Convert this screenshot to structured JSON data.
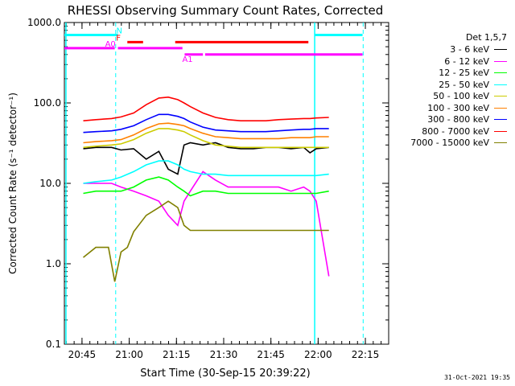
{
  "footer_date": "31-Oct-2021 19:35",
  "chart_data": {
    "type": "line",
    "title": "RHESSI Observing Summary Count Rates, Corrected",
    "xlabel": "Start Time (30-Sep-15 20:39:22)",
    "ylabel": "Corrected Count Rate (s⁻¹ detector⁻¹)",
    "yscale": "log",
    "ylim": [
      0.1,
      1000
    ],
    "yticks": [
      "0.1",
      "1.0",
      "10.0",
      "100.0",
      "1000.0"
    ],
    "xlim_minutes": [
      0,
      103
    ],
    "xticks": [
      {
        "label": "20:45",
        "min": 5.6
      },
      {
        "label": "21:00",
        "min": 20.6
      },
      {
        "label": "21:15",
        "min": 35.6
      },
      {
        "label": "21:30",
        "min": 50.6
      },
      {
        "label": "21:45",
        "min": 65.6
      },
      {
        "label": "22:00",
        "min": 80.6
      },
      {
        "label": "22:15",
        "min": 95.6
      }
    ],
    "legend_header": "Det 1,5,7",
    "legend_placement": "right",
    "vlines_solid_min": [
      0.5,
      79.5
    ],
    "vlines_dashed_min": [
      16.3,
      94.9
    ],
    "flag_bars": [
      {
        "label": "N",
        "color": "#00ffff",
        "segments": [
          [
            0,
            17
          ],
          [
            79.5,
            94.7
          ]
        ],
        "level": 700
      },
      {
        "label": "F",
        "color": "#ff0000",
        "segments": [
          [
            20,
            25
          ],
          [
            35.2,
            77.5
          ]
        ],
        "level": 570
      },
      {
        "label": "A0",
        "color": "#ff00ff",
        "segments": [
          [
            0,
            16
          ],
          [
            17,
            37.5
          ]
        ],
        "level": 480
      },
      {
        "label": "A1",
        "color": "#ff00ff",
        "segments": [
          [
            38.2,
            44
          ],
          [
            44.7,
            94.7
          ]
        ],
        "level": 400
      }
    ],
    "series": [
      {
        "name": "3 - 6 keV",
        "color": "#000000",
        "x": [
          6,
          10,
          15,
          18,
          22,
          26,
          30,
          33,
          36,
          38,
          40,
          44,
          48,
          52,
          56,
          60,
          64,
          68,
          72,
          76,
          78,
          80,
          84
        ],
        "values": [
          27,
          28,
          28,
          26,
          27,
          20,
          25,
          15,
          13,
          30,
          32,
          30,
          32,
          28,
          27,
          27,
          28,
          28,
          27,
          28,
          24,
          27,
          28
        ]
      },
      {
        "name": "6 - 12 keV",
        "color": "#ff00ff",
        "x": [
          6,
          10,
          15,
          18,
          22,
          26,
          30,
          33,
          36,
          38,
          40,
          44,
          48,
          52,
          56,
          60,
          64,
          68,
          72,
          76,
          78,
          80,
          84
        ],
        "values": [
          10,
          10,
          10,
          9,
          8,
          7,
          6,
          4,
          3,
          6,
          8,
          14,
          11,
          9,
          9,
          9,
          9,
          9,
          8,
          9,
          8,
          6,
          0.7
        ]
      },
      {
        "name": "12 - 25 keV",
        "color": "#00ff00",
        "x": [
          6,
          10,
          15,
          18,
          22,
          26,
          30,
          33,
          36,
          38,
          40,
          44,
          48,
          52,
          56,
          60,
          64,
          68,
          72,
          76,
          78,
          80,
          84
        ],
        "values": [
          7.5,
          8,
          8,
          8,
          9,
          11,
          12,
          11,
          9,
          8,
          7,
          8,
          8,
          7.5,
          7.5,
          7.5,
          7.5,
          7.5,
          7.5,
          7.5,
          7.5,
          7.5,
          8
        ]
      },
      {
        "name": "25 - 50 keV",
        "color": "#00ffff",
        "x": [
          6,
          10,
          15,
          18,
          22,
          26,
          30,
          33,
          36,
          38,
          40,
          44,
          48,
          52,
          56,
          60,
          64,
          68,
          72,
          76,
          78,
          80,
          84
        ],
        "values": [
          10,
          10.5,
          11,
          12,
          14,
          17,
          19,
          19,
          17,
          15,
          14,
          13,
          13,
          12.5,
          12.5,
          12.5,
          12.5,
          12.5,
          12.5,
          12.5,
          12.5,
          12.5,
          13
        ]
      },
      {
        "name": "50 - 100 keV",
        "color": "#cccc00",
        "x": [
          6,
          10,
          15,
          18,
          22,
          26,
          30,
          33,
          36,
          38,
          40,
          44,
          48,
          52,
          56,
          60,
          64,
          68,
          72,
          76,
          78,
          80,
          84
        ],
        "values": [
          28,
          29,
          30,
          31,
          35,
          42,
          48,
          48,
          46,
          44,
          40,
          34,
          30,
          29,
          28,
          28,
          28,
          28,
          28,
          28,
          28,
          28,
          28
        ]
      },
      {
        "name": "100 - 300 keV",
        "color": "#ff8000",
        "x": [
          6,
          10,
          15,
          18,
          22,
          26,
          30,
          33,
          36,
          38,
          40,
          44,
          48,
          52,
          56,
          60,
          64,
          68,
          72,
          76,
          78,
          80,
          84
        ],
        "values": [
          32,
          33,
          34,
          35,
          40,
          48,
          55,
          56,
          54,
          52,
          48,
          42,
          38,
          37,
          36,
          36,
          36,
          36,
          37,
          37,
          37,
          38,
          38
        ]
      },
      {
        "name": "300 - 800 keV",
        "color": "#0000ff",
        "x": [
          6,
          10,
          15,
          18,
          22,
          26,
          30,
          33,
          36,
          38,
          40,
          44,
          48,
          52,
          56,
          60,
          64,
          68,
          72,
          76,
          78,
          80,
          84
        ],
        "values": [
          43,
          44,
          45,
          47,
          52,
          62,
          72,
          72,
          68,
          64,
          58,
          50,
          46,
          45,
          44,
          44,
          44,
          45,
          46,
          47,
          47,
          48,
          48
        ]
      },
      {
        "name": "800 - 7000 keV",
        "color": "#ff0000",
        "x": [
          6,
          10,
          15,
          18,
          22,
          26,
          30,
          33,
          36,
          38,
          40,
          44,
          48,
          52,
          56,
          60,
          64,
          68,
          72,
          76,
          78,
          80,
          84
        ],
        "values": [
          60,
          62,
          64,
          67,
          75,
          95,
          115,
          118,
          110,
          100,
          90,
          75,
          66,
          62,
          60,
          60,
          60,
          62,
          63,
          64,
          64,
          65,
          66
        ]
      },
      {
        "name": "7000 - 15000 keV",
        "color": "#808000",
        "x": [
          6,
          10,
          14,
          16,
          18,
          20,
          22,
          26,
          30,
          33,
          36,
          38,
          40,
          44,
          48,
          52,
          56,
          60,
          64,
          68,
          72,
          76,
          80,
          84
        ],
        "values": [
          1.2,
          1.6,
          1.6,
          0.6,
          1.4,
          1.6,
          2.5,
          4,
          5,
          6,
          5,
          3,
          2.6,
          2.6,
          2.6,
          2.6,
          2.6,
          2.6,
          2.6,
          2.6,
          2.6,
          2.6,
          2.6,
          2.6
        ]
      }
    ]
  }
}
